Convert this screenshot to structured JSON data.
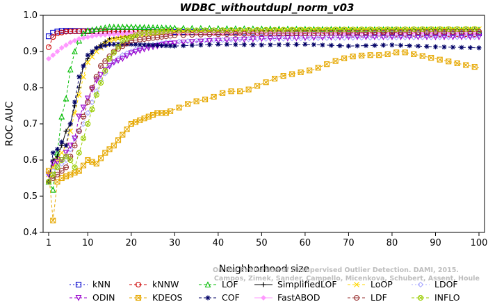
{
  "chart_data": {
    "type": "line",
    "title": "WDBC_withoutdupl_norm_v03",
    "xlabel": "Neighborhood size",
    "ylabel": "ROC AUC",
    "xlim": [
      1,
      100
    ],
    "ylim": [
      0.4,
      1.0
    ],
    "xticks": [
      1,
      10,
      20,
      30,
      40,
      50,
      60,
      70,
      80,
      90,
      100
    ],
    "yticks": [
      0.4,
      0.5,
      0.6,
      0.7,
      0.8,
      0.9,
      1.0
    ],
    "ytick_labels": [
      "0.4",
      "0.5",
      "0.6",
      "0.7",
      "0.8",
      "0.9",
      "1.0"
    ],
    "grid": false,
    "legend_position": "bottom",
    "credit": [
      "Campos, Zimek, Sander, Campello, Micenkova, Schubert, Assent, Houle",
      "On the Evaluation of Unsupervised Outlier Detection. DAMI, 2015."
    ],
    "series": [
      {
        "name": "kNN",
        "color": "#0000cc",
        "marker": "square",
        "dash": "2,3",
        "points": [
          [
            1,
            0.942
          ],
          [
            2,
            0.952
          ],
          [
            3,
            0.955
          ],
          [
            4,
            0.957
          ],
          [
            6,
            0.957
          ],
          [
            10,
            0.956
          ],
          [
            20,
            0.955
          ],
          [
            40,
            0.953
          ],
          [
            60,
            0.952
          ],
          [
            80,
            0.951
          ],
          [
            100,
            0.95
          ]
        ]
      },
      {
        "name": "kNNW",
        "color": "#cc0000",
        "marker": "circle",
        "dash": "4,3",
        "points": [
          [
            1,
            0.912
          ],
          [
            2,
            0.94
          ],
          [
            3,
            0.95
          ],
          [
            5,
            0.955
          ],
          [
            8,
            0.956
          ],
          [
            15,
            0.955
          ],
          [
            30,
            0.953
          ],
          [
            60,
            0.95
          ],
          [
            100,
            0.948
          ]
        ]
      },
      {
        "name": "LOF",
        "color": "#00bb00",
        "marker": "triangle-up",
        "dash": "4,3",
        "points": [
          [
            1,
            0.54
          ],
          [
            2,
            0.518
          ],
          [
            3,
            0.62
          ],
          [
            4,
            0.72
          ],
          [
            5,
            0.77
          ],
          [
            6,
            0.85
          ],
          [
            7,
            0.9
          ],
          [
            8,
            0.93
          ],
          [
            9,
            0.95
          ],
          [
            10,
            0.958
          ],
          [
            12,
            0.962
          ],
          [
            15,
            0.968
          ],
          [
            20,
            0.968
          ],
          [
            30,
            0.965
          ],
          [
            40,
            0.964
          ],
          [
            60,
            0.962
          ],
          [
            80,
            0.961
          ],
          [
            100,
            0.96
          ]
        ]
      },
      {
        "name": "SimplifiedLOF",
        "color": "#000000",
        "marker": "plus",
        "dash": "",
        "points": [
          [
            1,
            0.54
          ],
          [
            2,
            0.6
          ],
          [
            3,
            0.61
          ],
          [
            4,
            0.64
          ],
          [
            5,
            0.68
          ],
          [
            6,
            0.7
          ],
          [
            7,
            0.75
          ],
          [
            8,
            0.8
          ],
          [
            9,
            0.86
          ],
          [
            10,
            0.88
          ],
          [
            12,
            0.91
          ],
          [
            15,
            0.935
          ],
          [
            20,
            0.945
          ],
          [
            25,
            0.95
          ],
          [
            30,
            0.955
          ],
          [
            50,
            0.958
          ],
          [
            100,
            0.96
          ]
        ]
      },
      {
        "name": "LoOP",
        "color": "#ffd700",
        "marker": "x",
        "dash": "4,3",
        "points": [
          [
            1,
            0.56
          ],
          [
            2,
            0.58
          ],
          [
            3,
            0.6
          ],
          [
            4,
            0.62
          ],
          [
            5,
            0.64
          ],
          [
            6,
            0.68
          ],
          [
            7,
            0.73
          ],
          [
            8,
            0.78
          ],
          [
            9,
            0.83
          ],
          [
            10,
            0.87
          ],
          [
            12,
            0.9
          ],
          [
            15,
            0.93
          ],
          [
            20,
            0.945
          ],
          [
            30,
            0.955
          ],
          [
            60,
            0.96
          ],
          [
            100,
            0.962
          ]
        ]
      },
      {
        "name": "LDOF",
        "color": "#aaaaff",
        "marker": "diamond",
        "dash": "2,3",
        "points": [
          [
            1,
            0.56
          ],
          [
            3,
            0.58
          ],
          [
            5,
            0.6
          ],
          [
            7,
            0.66
          ],
          [
            9,
            0.7
          ],
          [
            11,
            0.76
          ],
          [
            13,
            0.82
          ],
          [
            15,
            0.86
          ],
          [
            18,
            0.89
          ],
          [
            22,
            0.91
          ],
          [
            28,
            0.925
          ],
          [
            35,
            0.93
          ],
          [
            50,
            0.935
          ],
          [
            70,
            0.938
          ],
          [
            100,
            0.94
          ]
        ]
      },
      {
        "name": "ODIN",
        "color": "#9900cc",
        "marker": "triangle-down",
        "dash": "4,3",
        "points": [
          [
            1,
            0.56
          ],
          [
            2,
            0.59
          ],
          [
            4,
            0.6
          ],
          [
            6,
            0.64
          ],
          [
            7,
            0.66
          ],
          [
            8,
            0.72
          ],
          [
            10,
            0.77
          ],
          [
            12,
            0.82
          ],
          [
            14,
            0.85
          ],
          [
            16,
            0.87
          ],
          [
            18,
            0.88
          ],
          [
            20,
            0.895
          ],
          [
            24,
            0.91
          ],
          [
            28,
            0.92
          ],
          [
            32,
            0.925
          ],
          [
            40,
            0.93
          ],
          [
            50,
            0.935
          ],
          [
            70,
            0.94
          ],
          [
            100,
            0.94
          ]
        ]
      },
      {
        "name": "KDEOS",
        "color": "#e6a800",
        "marker": "hatched-square",
        "dash": "4,3",
        "points": [
          [
            1,
            0.57
          ],
          [
            2,
            0.433
          ],
          [
            3,
            0.54
          ],
          [
            4,
            0.55
          ],
          [
            6,
            0.56
          ],
          [
            8,
            0.57
          ],
          [
            10,
            0.6
          ],
          [
            12,
            0.59
          ],
          [
            14,
            0.62
          ],
          [
            16,
            0.64
          ],
          [
            18,
            0.67
          ],
          [
            20,
            0.7
          ],
          [
            22,
            0.71
          ],
          [
            24,
            0.72
          ],
          [
            26,
            0.73
          ],
          [
            28,
            0.73
          ],
          [
            30,
            0.74
          ],
          [
            34,
            0.76
          ],
          [
            38,
            0.77
          ],
          [
            42,
            0.79
          ],
          [
            46,
            0.79
          ],
          [
            50,
            0.81
          ],
          [
            54,
            0.83
          ],
          [
            58,
            0.84
          ],
          [
            62,
            0.85
          ],
          [
            66,
            0.87
          ],
          [
            70,
            0.885
          ],
          [
            74,
            0.89
          ],
          [
            78,
            0.89
          ],
          [
            82,
            0.9
          ],
          [
            86,
            0.89
          ],
          [
            90,
            0.88
          ],
          [
            94,
            0.87
          ],
          [
            98,
            0.86
          ],
          [
            100,
            0.855
          ]
        ]
      },
      {
        "name": "COF",
        "color": "#000066",
        "marker": "asterisk",
        "dash": "4,3",
        "points": [
          [
            1,
            0.54
          ],
          [
            2,
            0.62
          ],
          [
            3,
            0.63
          ],
          [
            4,
            0.65
          ],
          [
            5,
            0.64
          ],
          [
            6,
            0.7
          ],
          [
            7,
            0.76
          ],
          [
            8,
            0.83
          ],
          [
            9,
            0.86
          ],
          [
            10,
            0.89
          ],
          [
            12,
            0.91
          ],
          [
            15,
            0.92
          ],
          [
            20,
            0.92
          ],
          [
            30,
            0.915
          ],
          [
            40,
            0.92
          ],
          [
            50,
            0.918
          ],
          [
            60,
            0.92
          ],
          [
            70,
            0.915
          ],
          [
            80,
            0.918
          ],
          [
            90,
            0.913
          ],
          [
            100,
            0.91
          ]
        ]
      },
      {
        "name": "FastABOD",
        "color": "#ff99ff",
        "marker": "filled-diamond",
        "dash": "",
        "points": [
          [
            1,
            0.88
          ],
          [
            2,
            0.89
          ],
          [
            3,
            0.9
          ],
          [
            4,
            0.91
          ],
          [
            6,
            0.925
          ],
          [
            8,
            0.935
          ],
          [
            12,
            0.945
          ],
          [
            20,
            0.95
          ],
          [
            40,
            0.953
          ],
          [
            70,
            0.953
          ],
          [
            100,
            0.954
          ]
        ]
      },
      {
        "name": "LDF",
        "color": "#993333",
        "marker": "circle-dot",
        "dash": "4,3",
        "points": [
          [
            1,
            0.54
          ],
          [
            3,
            0.56
          ],
          [
            5,
            0.58
          ],
          [
            7,
            0.64
          ],
          [
            9,
            0.72
          ],
          [
            11,
            0.8
          ],
          [
            13,
            0.86
          ],
          [
            16,
            0.9
          ],
          [
            20,
            0.93
          ],
          [
            30,
            0.945
          ],
          [
            50,
            0.95
          ],
          [
            100,
            0.955
          ]
        ]
      },
      {
        "name": "INFLO",
        "color": "#99cc00",
        "marker": "hatched-circle",
        "dash": "4,3",
        "points": [
          [
            1,
            0.54
          ],
          [
            2,
            0.56
          ],
          [
            3,
            0.58
          ],
          [
            4,
            0.6
          ],
          [
            5,
            0.61
          ],
          [
            6,
            0.6
          ],
          [
            7,
            0.58
          ],
          [
            8,
            0.62
          ],
          [
            10,
            0.7
          ],
          [
            12,
            0.78
          ],
          [
            15,
            0.88
          ],
          [
            18,
            0.93
          ],
          [
            22,
            0.95
          ],
          [
            30,
            0.958
          ],
          [
            50,
            0.96
          ],
          [
            100,
            0.962
          ]
        ]
      }
    ]
  }
}
